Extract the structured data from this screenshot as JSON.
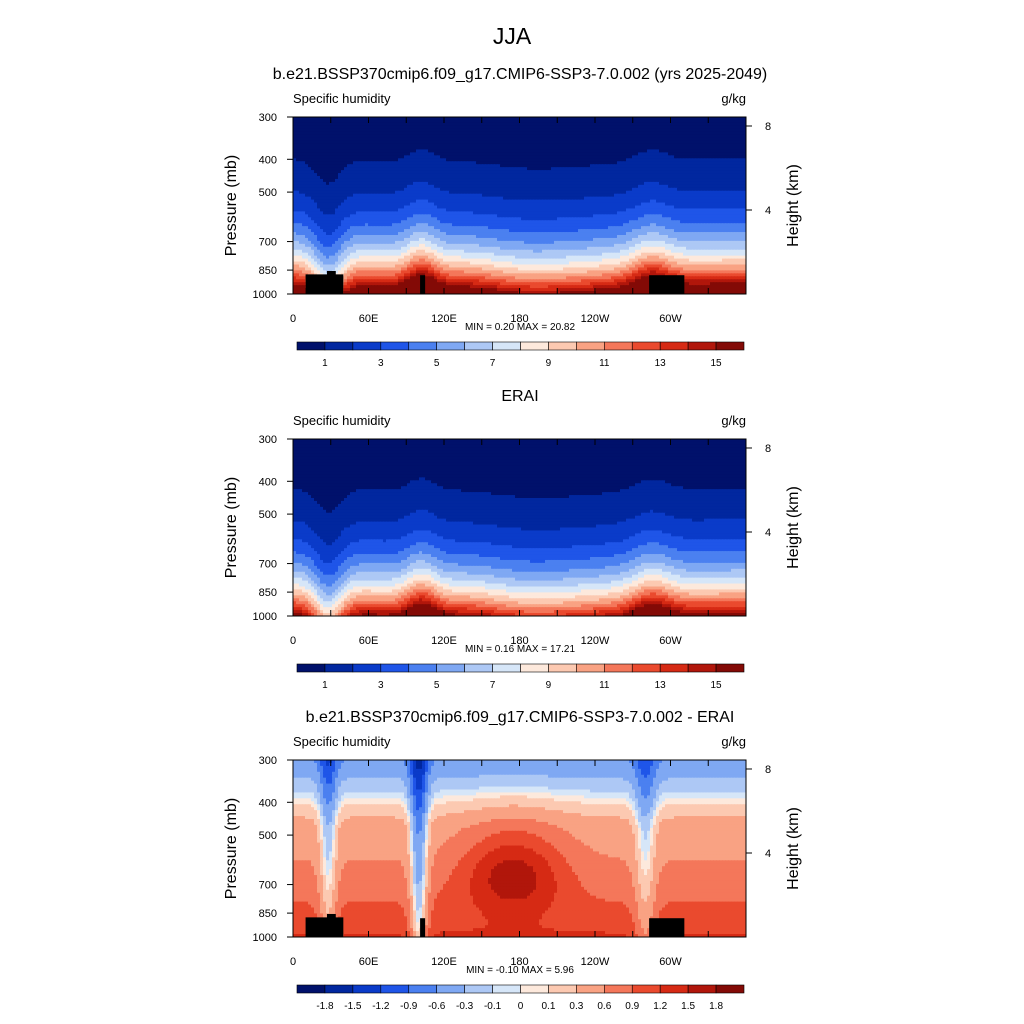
{
  "figure": {
    "title": "JJA"
  },
  "chart_data": [
    {
      "type": "heatmap",
      "title": "b.e21.BSSP370cmip6.f09_g17.CMIP6-SSP3-7.0.002 (yrs 2025-2049)",
      "variable": "Specific humidity",
      "units": "g/kg",
      "ylabel": "Pressure (mb)",
      "ylabel_right": "Height (km)",
      "yticks": [
        "300",
        "400",
        "500",
        "700",
        "850",
        "1000"
      ],
      "ytick_values": [
        300,
        400,
        500,
        700,
        850,
        1000
      ],
      "ylim": [
        1000,
        300
      ],
      "yscale": "log",
      "right_ticks": [
        "8",
        "4"
      ],
      "right_tick_values": [
        8,
        4
      ],
      "xticks": [
        "0",
        "60E",
        "120E",
        "180",
        "120W",
        "60W"
      ],
      "xtick_values": [
        0,
        60,
        120,
        180,
        240,
        300
      ],
      "xlim": [
        0,
        360
      ],
      "stats": "MIN =   0.20  MAX =  20.82",
      "min": 0.2,
      "max": 20.82,
      "kind": "field",
      "colorbar": {
        "levels": [
          0,
          1,
          2,
          3,
          4,
          5,
          6,
          7,
          8,
          9,
          10,
          11,
          12,
          13,
          14,
          15,
          16
        ],
        "labels": [
          "1",
          "3",
          "5",
          "7",
          "9",
          "11",
          "13",
          "15"
        ],
        "colors": [
          "#00116b",
          "#01279f",
          "#0a3bc9",
          "#1f55e8",
          "#4b80f0",
          "#7fa8f3",
          "#adc8f5",
          "#d6e6f8",
          "#fde9dc",
          "#fcc9b1",
          "#f9a283",
          "#f4775a",
          "#ea4a2e",
          "#d62a14",
          "#b1160b",
          "#830a06"
        ]
      }
    },
    {
      "type": "heatmap",
      "title": "ERAI",
      "variable": "Specific humidity",
      "units": "g/kg",
      "ylabel": "Pressure (mb)",
      "ylabel_right": "Height (km)",
      "yticks": [
        "300",
        "400",
        "500",
        "700",
        "850",
        "1000"
      ],
      "ytick_values": [
        300,
        400,
        500,
        700,
        850,
        1000
      ],
      "ylim": [
        1000,
        300
      ],
      "yscale": "log",
      "right_ticks": [
        "8",
        "4"
      ],
      "right_tick_values": [
        8,
        4
      ],
      "xticks": [
        "0",
        "60E",
        "120E",
        "180",
        "120W",
        "60W"
      ],
      "xtick_values": [
        0,
        60,
        120,
        180,
        240,
        300
      ],
      "xlim": [
        0,
        360
      ],
      "stats": "MIN =   0.16  MAX =  17.21",
      "min": 0.16,
      "max": 17.21,
      "kind": "field",
      "colorbar": {
        "levels": [
          0,
          1,
          2,
          3,
          4,
          5,
          6,
          7,
          8,
          9,
          10,
          11,
          12,
          13,
          14,
          15,
          16
        ],
        "labels": [
          "1",
          "3",
          "5",
          "7",
          "9",
          "11",
          "13",
          "15"
        ],
        "colors": [
          "#00116b",
          "#01279f",
          "#0a3bc9",
          "#1f55e8",
          "#4b80f0",
          "#7fa8f3",
          "#adc8f5",
          "#d6e6f8",
          "#fde9dc",
          "#fcc9b1",
          "#f9a283",
          "#f4775a",
          "#ea4a2e",
          "#d62a14",
          "#b1160b",
          "#830a06"
        ]
      }
    },
    {
      "type": "heatmap",
      "title": "b.e21.BSSP370cmip6.f09_g17.CMIP6-SSP3-7.0.002 - ERAI",
      "variable": "Specific humidity",
      "units": "g/kg",
      "ylabel": "Pressure (mb)",
      "ylabel_right": "Height (km)",
      "yticks": [
        "300",
        "400",
        "500",
        "700",
        "850",
        "1000"
      ],
      "ytick_values": [
        300,
        400,
        500,
        700,
        850,
        1000
      ],
      "ylim": [
        1000,
        300
      ],
      "yscale": "log",
      "right_ticks": [
        "8",
        "4"
      ],
      "right_tick_values": [
        8,
        4
      ],
      "xticks": [
        "0",
        "60E",
        "120E",
        "180",
        "120W",
        "60W"
      ],
      "xtick_values": [
        0,
        60,
        120,
        180,
        240,
        300
      ],
      "xlim": [
        0,
        360
      ],
      "stats": "MIN =  -0.10  MAX =   5.96",
      "min": -0.1,
      "max": 5.96,
      "kind": "diff",
      "colorbar": {
        "levels": [
          -2.1,
          -1.8,
          -1.5,
          -1.2,
          -0.9,
          -0.6,
          -0.3,
          -0.1,
          0,
          0.1,
          0.3,
          0.6,
          0.9,
          1.2,
          1.5,
          1.8,
          2.1
        ],
        "labels": [
          "-1.8",
          "-1.5",
          "-1.2",
          "-0.9",
          "-0.6",
          "-0.3",
          "-0.1",
          "0",
          "0.1",
          "0.3",
          "0.6",
          "0.9",
          "1.2",
          "1.5",
          "1.8"
        ],
        "colors": [
          "#00116b",
          "#01279f",
          "#0a3bc9",
          "#1f55e8",
          "#4b80f0",
          "#7fa8f3",
          "#adc8f5",
          "#d6e6f8",
          "#fde9dc",
          "#fcc9b1",
          "#f9a283",
          "#f4775a",
          "#ea4a2e",
          "#d62a14",
          "#b1160b",
          "#830a06"
        ]
      }
    }
  ]
}
